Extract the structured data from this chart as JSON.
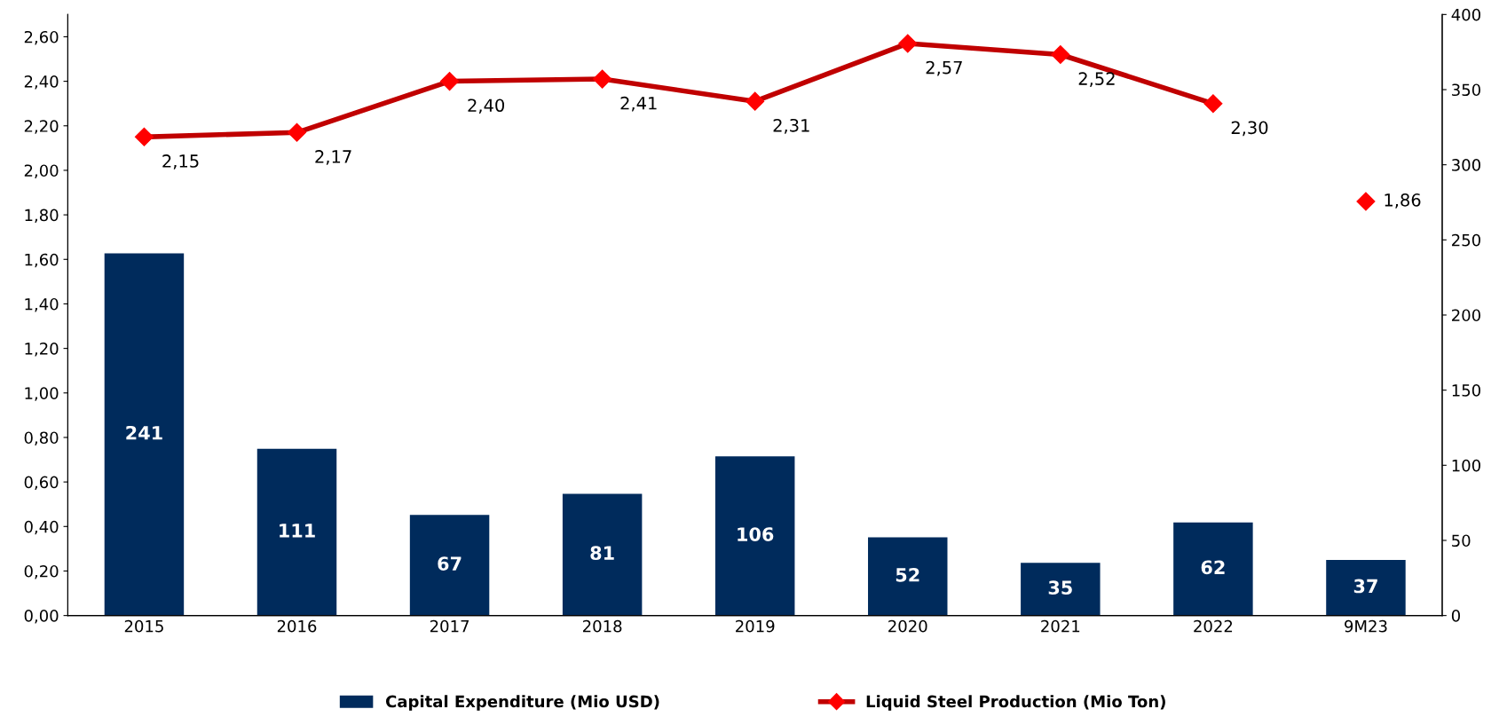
{
  "chart_data": {
    "type": "bar",
    "categories": [
      "2015",
      "2016",
      "2017",
      "2018",
      "2019",
      "2020",
      "2021",
      "2022",
      "9M23"
    ],
    "series": [
      {
        "name": "Capital Expenditure (Mio USD)",
        "axis": "y2",
        "color": "#002b5c",
        "values": [
          241,
          111,
          67,
          81,
          106,
          52,
          35,
          62,
          37
        ],
        "value_labels": [
          "241",
          "111",
          "67",
          "81",
          "106",
          "52",
          "35",
          "62",
          "37"
        ]
      },
      {
        "name": "Liquid Steel Production (Mio Ton)",
        "type": "line",
        "color": "#c00000",
        "marker": "diamond",
        "values": [
          2.15,
          2.17,
          2.4,
          2.41,
          2.31,
          2.57,
          2.52,
          2.3,
          null
        ],
        "value_labels": [
          "2,15",
          "2,17",
          "2,40",
          "2,41",
          "2,31",
          "2,57",
          "2,52",
          "2,30",
          null
        ]
      },
      {
        "type": "scatter",
        "color": "#ff0000",
        "marker": "diamond",
        "values": [
          null,
          null,
          null,
          null,
          null,
          null,
          null,
          null,
          1.86
        ],
        "value_labels": [
          null,
          null,
          null,
          null,
          null,
          null,
          null,
          null,
          "1,86"
        ]
      }
    ],
    "ylim": [
      0,
      2.7
    ],
    "yticks": [
      {
        "value": 0,
        "label": "0,00"
      },
      {
        "value": 0.2,
        "label": "0,20"
      },
      {
        "value": 0.4,
        "label": "0,40"
      },
      {
        "value": 0.6,
        "label": "0,60"
      },
      {
        "value": 0.8,
        "label": "0,80"
      },
      {
        "value": 1.0,
        "label": "1,00"
      },
      {
        "value": 1.2,
        "label": "1,20"
      },
      {
        "value": 1.4,
        "label": "1,40"
      },
      {
        "value": 1.6,
        "label": "1,60"
      },
      {
        "value": 1.8,
        "label": "1,80"
      },
      {
        "value": 2.0,
        "label": "2,00"
      },
      {
        "value": 2.2,
        "label": "2,20"
      },
      {
        "value": 2.4,
        "label": "2,40"
      },
      {
        "value": 2.6,
        "label": "2,60"
      }
    ],
    "y2lim": [
      0,
      400
    ],
    "y2ticks": [
      0,
      50,
      100,
      150,
      200,
      250,
      300,
      350,
      400
    ],
    "legend": "bottom",
    "grid": false
  }
}
